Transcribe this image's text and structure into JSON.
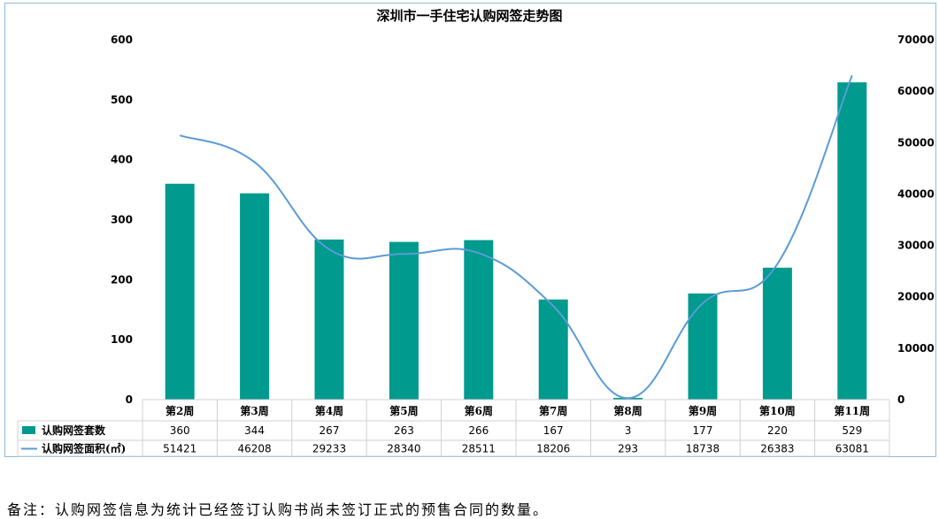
{
  "chart_data": {
    "type": "bar",
    "title": "深圳市一手住宅认购网签走势图",
    "categories": [
      "第2周",
      "第3周",
      "第4周",
      "第5周",
      "第6周",
      "第7周",
      "第8周",
      "第9周",
      "第10周",
      "第11周"
    ],
    "series": [
      {
        "name": "认购网签套数",
        "type": "bar",
        "axis": "left",
        "color": "#009a8e",
        "values": [
          360,
          344,
          267,
          263,
          266,
          167,
          3,
          177,
          220,
          529
        ]
      },
      {
        "name": "认购网签面积(㎡)",
        "type": "line",
        "axis": "right",
        "color": "#5b9bd5",
        "values": [
          51421,
          46208,
          29233,
          28340,
          28511,
          18206,
          293,
          18738,
          26383,
          63081
        ]
      }
    ],
    "y_left": {
      "min": 0,
      "max": 600,
      "ticks": [
        "0",
        "100",
        "200",
        "300",
        "400",
        "500",
        "600"
      ]
    },
    "y_right": {
      "min": 0,
      "max": 70000,
      "ticks": [
        "0",
        "10000",
        "20000",
        "30000",
        "40000",
        "50000",
        "60000",
        "70000"
      ]
    },
    "grid": false,
    "legend": "data-table"
  },
  "table": {
    "rows": [
      {
        "label": "认购网签套数",
        "values": [
          "360",
          "344",
          "267",
          "263",
          "266",
          "167",
          "3",
          "177",
          "220",
          "529"
        ]
      },
      {
        "label": "认购网签面积(㎡)",
        "values": [
          "51421",
          "46208",
          "29233",
          "28340",
          "28511",
          "18206",
          "293",
          "18738",
          "26383",
          "63081"
        ]
      }
    ]
  },
  "footnote": "备注：认购网签信息为统计已经签订认购书尚未签订正式的预售合同的数量。"
}
